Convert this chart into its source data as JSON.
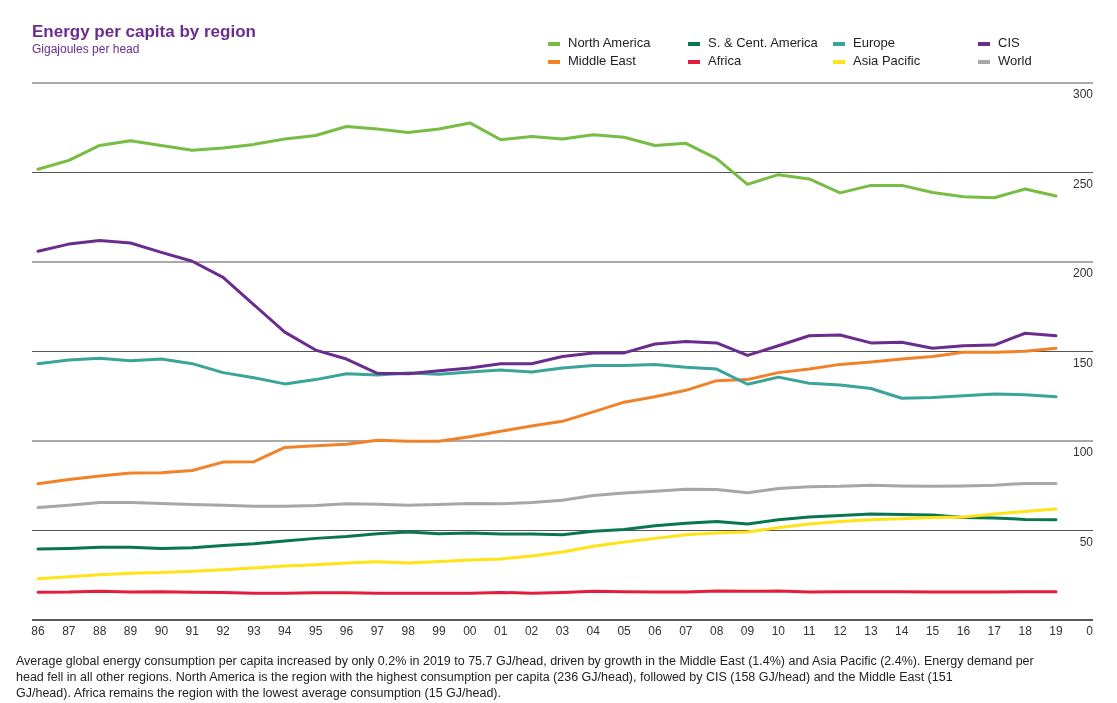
{
  "chart_data": {
    "type": "line",
    "title": "Energy per capita by region",
    "subtitle": "Gigajoules per head",
    "categories": [
      "86",
      "87",
      "88",
      "89",
      "90",
      "91",
      "92",
      "93",
      "94",
      "95",
      "96",
      "97",
      "98",
      "99",
      "00",
      "01",
      "02",
      "03",
      "04",
      "05",
      "06",
      "07",
      "08",
      "09",
      "10",
      "11",
      "12",
      "13",
      "14",
      "15",
      "16",
      "17",
      "18",
      "19"
    ],
    "series": [
      {
        "name": "North America",
        "color": "#77bc43",
        "values": [
          251.8,
          256.8,
          265.1,
          267.7,
          265.1,
          262.4,
          263.7,
          265.7,
          268.7,
          270.7,
          275.7,
          274.3,
          272.3,
          274.3,
          277.7,
          268.3,
          270.1,
          268.7,
          271.1,
          269.7,
          265.1,
          266.3,
          257.8,
          243.4,
          248.8,
          246.4,
          238.6,
          242.8,
          242.8,
          238.8,
          236.5,
          235.9,
          240.8,
          236.9
        ]
      },
      {
        "name": "Middle East",
        "color": "#f0832a",
        "values": [
          76.1,
          78.5,
          80.5,
          82.1,
          82.3,
          83.5,
          88.2,
          88.4,
          96.4,
          97.4,
          98.2,
          100.4,
          99.8,
          99.8,
          102.4,
          105.4,
          108.4,
          111.0,
          116.3,
          121.7,
          124.7,
          128.3,
          133.7,
          134.3,
          138.2,
          140.2,
          142.8,
          144.2,
          145.8,
          147.2,
          149.6,
          149.6,
          150.2,
          151.8
        ]
      },
      {
        "name": "S. & Cent. America",
        "color": "#0a7651",
        "values": [
          39.6,
          40.0,
          40.6,
          40.6,
          40.0,
          40.4,
          41.6,
          42.6,
          44.2,
          45.6,
          46.6,
          48.2,
          49.2,
          48.2,
          48.6,
          48.0,
          48.0,
          47.6,
          49.6,
          50.6,
          52.6,
          54.0,
          55.0,
          53.6,
          56.0,
          57.6,
          58.4,
          59.2,
          59.0,
          58.6,
          57.2,
          57.0,
          56.2,
          56.0
        ]
      },
      {
        "name": "Africa",
        "color": "#e31d3b",
        "values": [
          15.5,
          15.6,
          16.1,
          15.7,
          15.8,
          15.5,
          15.3,
          15.0,
          15.0,
          15.2,
          15.2,
          15.0,
          15.0,
          15.0,
          15.0,
          15.4,
          15.0,
          15.4,
          16.0,
          15.8,
          15.6,
          15.6,
          16.2,
          16.0,
          16.2,
          15.6,
          15.8,
          15.8,
          15.8,
          15.6,
          15.6,
          15.6,
          15.8,
          15.8
        ]
      },
      {
        "name": "Europe",
        "color": "#3aa39a",
        "values": [
          143.2,
          145.2,
          146.2,
          144.8,
          145.8,
          143.2,
          138.2,
          135.3,
          131.9,
          134.3,
          137.6,
          136.9,
          138.0,
          137.3,
          138.6,
          139.6,
          138.6,
          140.8,
          142.2,
          142.2,
          142.8,
          141.2,
          140.2,
          131.7,
          135.7,
          132.3,
          131.3,
          129.3,
          123.9,
          124.3,
          125.3,
          126.3,
          125.9,
          124.7
        ]
      },
      {
        "name": "Asia Pacific",
        "color": "#ffe317",
        "values": [
          23.1,
          24.1,
          25.3,
          26.1,
          26.5,
          27.3,
          28.1,
          29.1,
          30.1,
          30.9,
          31.9,
          32.5,
          31.9,
          32.7,
          33.5,
          34.1,
          35.7,
          38.0,
          41.2,
          43.6,
          45.6,
          47.6,
          48.6,
          49.2,
          51.6,
          53.6,
          55.0,
          56.0,
          56.6,
          57.2,
          57.6,
          59.2,
          60.6,
          62.0
        ]
      },
      {
        "name": "CIS",
        "color": "#6a2c8e",
        "values": [
          206.0,
          210.0,
          212.0,
          210.6,
          205.4,
          200.4,
          191.4,
          176.1,
          160.8,
          150.8,
          145.8,
          137.8,
          137.6,
          139.2,
          140.8,
          143.2,
          143.2,
          147.2,
          149.2,
          149.2,
          154.2,
          155.6,
          154.8,
          147.8,
          153.2,
          158.8,
          159.2,
          154.8,
          155.2,
          151.8,
          153.2,
          153.6,
          160.2,
          158.8
        ]
      },
      {
        "name": "World",
        "color": "#a7a7a7",
        "values": [
          62.9,
          64.1,
          65.6,
          65.6,
          65.1,
          64.5,
          64.1,
          63.5,
          63.5,
          63.9,
          64.9,
          64.7,
          64.1,
          64.5,
          65.1,
          64.9,
          65.6,
          66.9,
          69.5,
          70.9,
          71.9,
          73.1,
          72.9,
          71.1,
          73.5,
          74.5,
          74.7,
          75.3,
          74.9,
          74.7,
          74.9,
          75.3,
          76.3,
          76.3
        ]
      }
    ],
    "ylim": [
      0,
      300
    ],
    "yticks": [
      0,
      50,
      100,
      150,
      200,
      250,
      300
    ],
    "grid": "y",
    "legend": "top right",
    "marker": "none",
    "line_style": "solid",
    "annotations": [
      "Average global energy consumption per capita increased by only 0.2% in 2019 to 75.7 GJ/head, driven by growth in the Middle East (1.4%) and Asia Pacific (2.4%). Energy demand per head fell in all other regions. North America is the region with the highest consumption per capita (236 GJ/head), followed by CIS (158 GJ/head) and the Middle East (151 GJ/head). Africa remains the region with the lowest average consumption (15 GJ/head)."
    ]
  }
}
